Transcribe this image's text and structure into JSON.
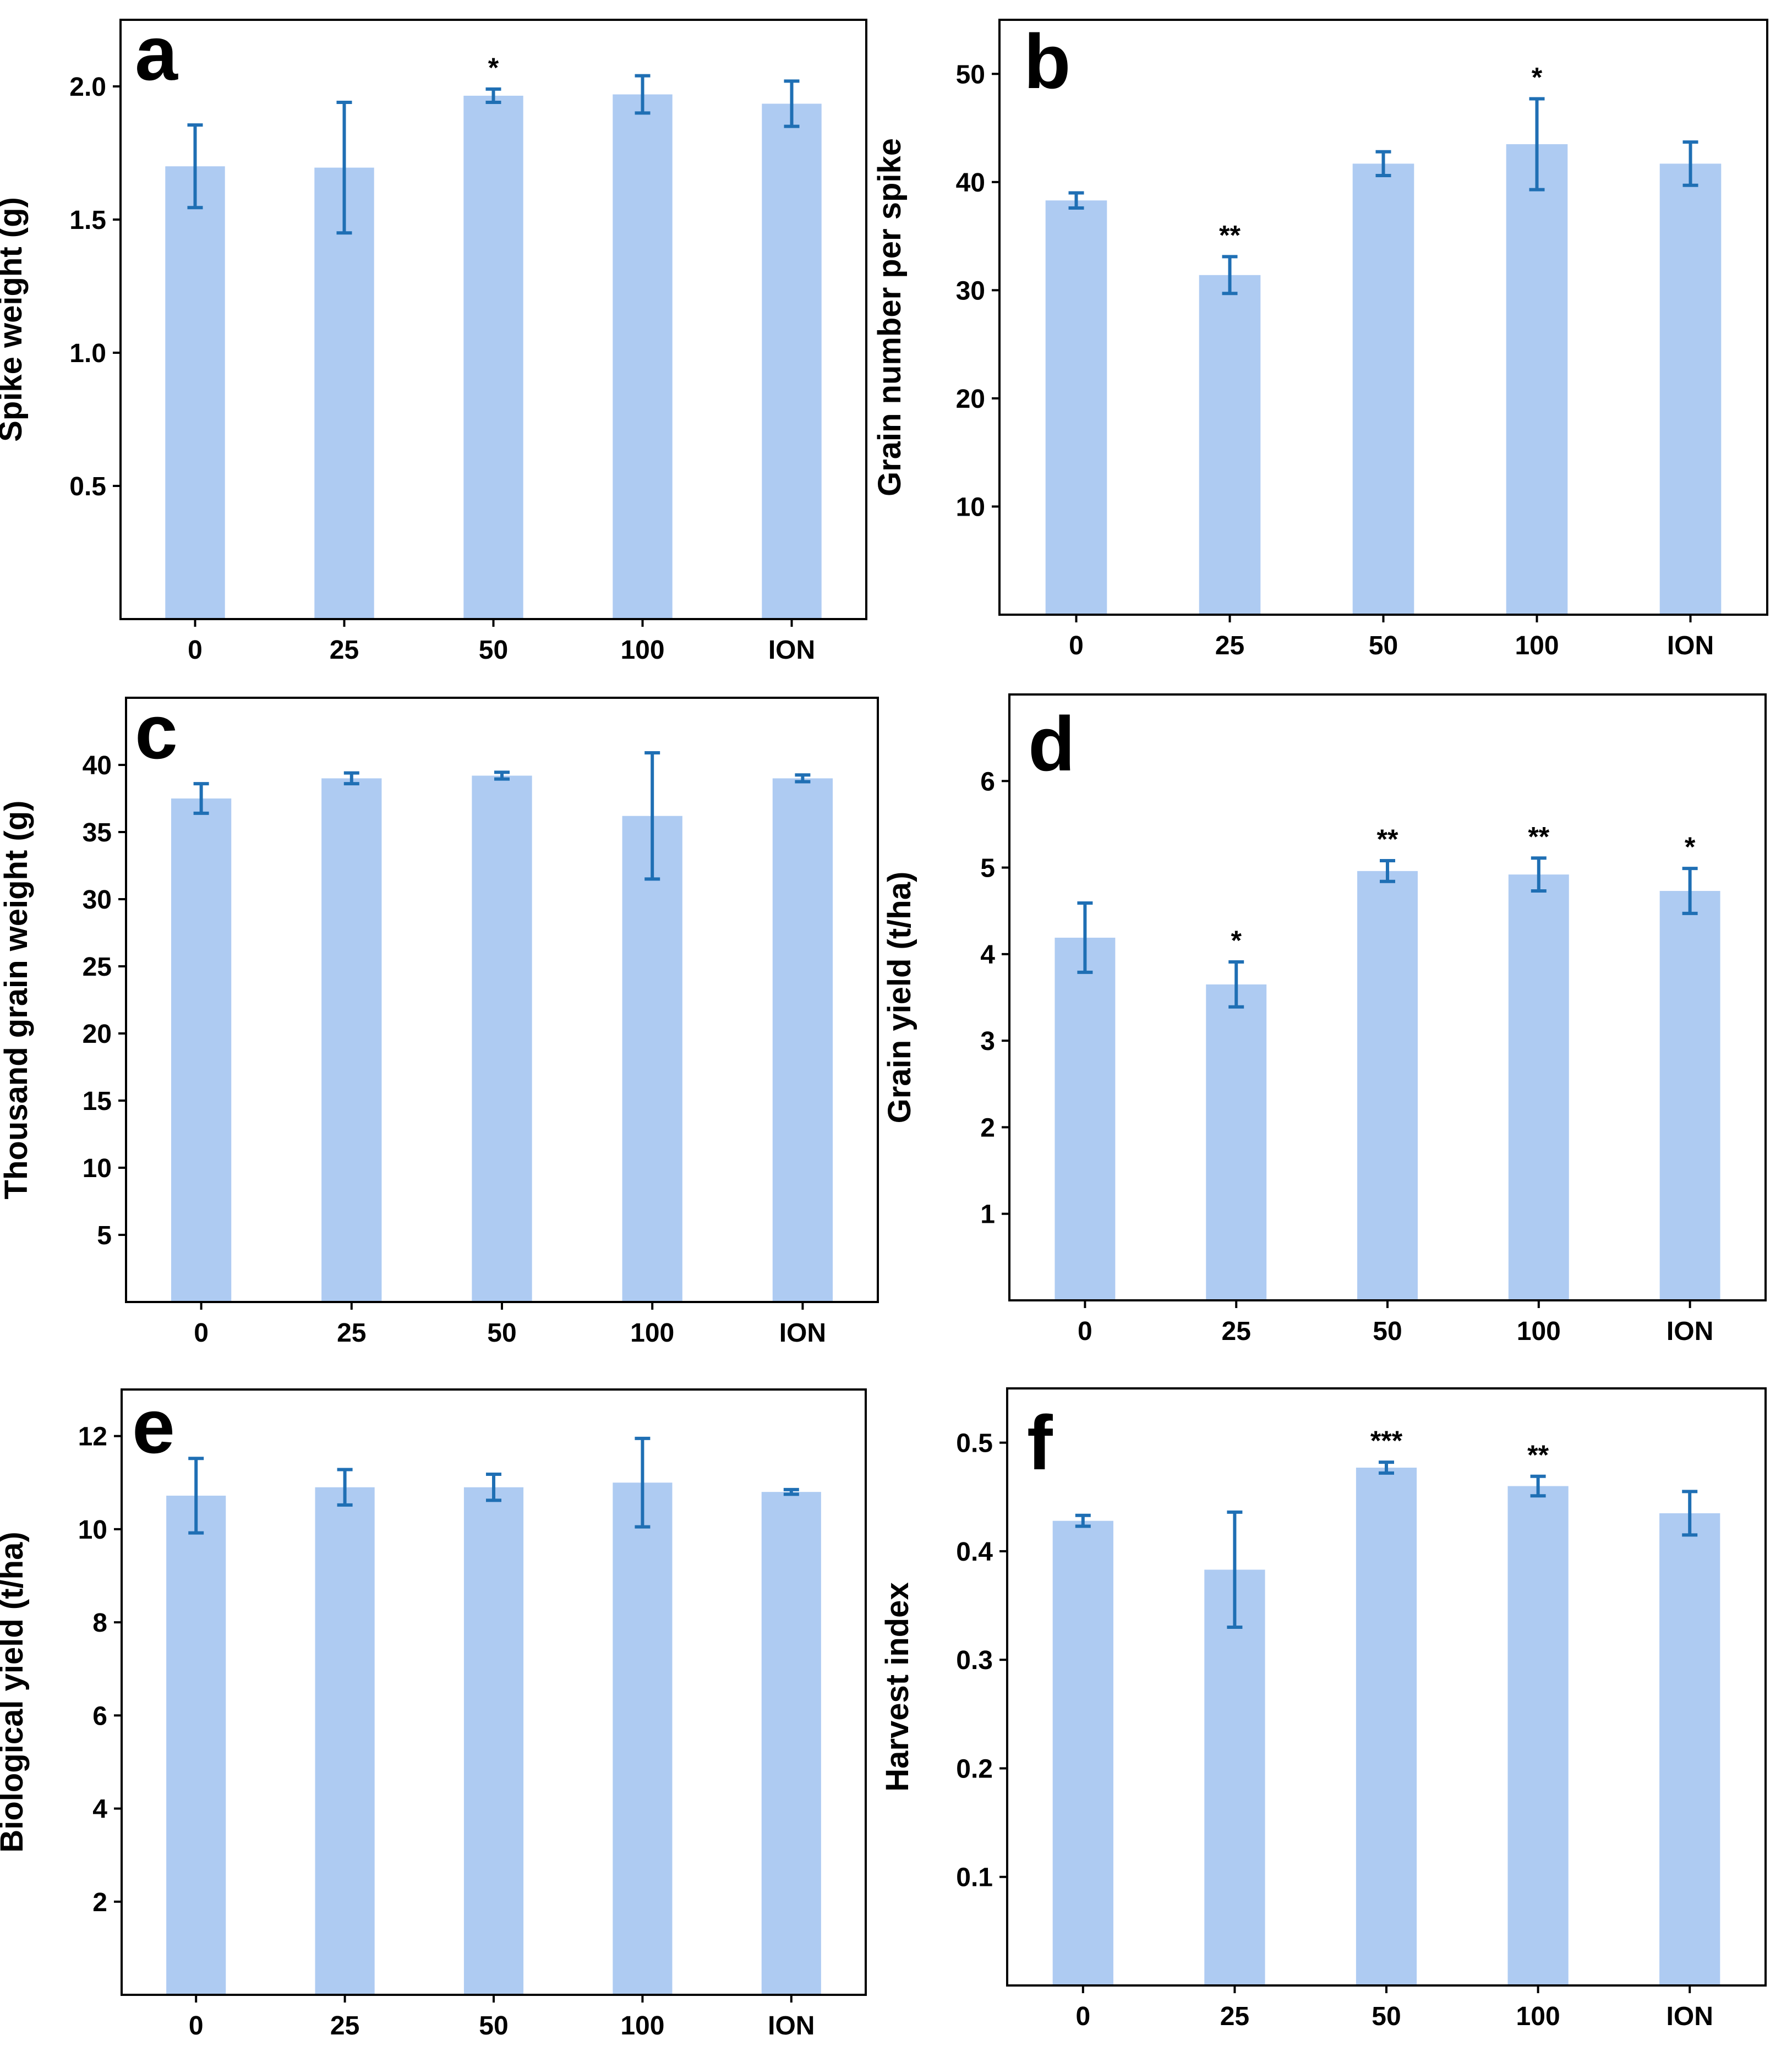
{
  "colors": {
    "bar": "#aecbf2",
    "error": "#1f6fb4",
    "axis": "#000000",
    "text": "#000000"
  },
  "chart_data": [
    {
      "type": "bar",
      "panel": "a",
      "categories": [
        "0",
        "25",
        "50",
        "100",
        "ION"
      ],
      "values": [
        1.7,
        1.695,
        1.965,
        1.97,
        1.935
      ],
      "errors": [
        0.155,
        0.245,
        0.025,
        0.07,
        0.085
      ],
      "significance": [
        "",
        "",
        "*",
        "",
        ""
      ],
      "xlabel": "",
      "ylabel": "Spike weight (g)",
      "ylim": [
        0,
        2.25
      ],
      "yticks": [
        0.5,
        1.0,
        1.5,
        2.0
      ],
      "ytick_labels": [
        "0.5",
        "1.0",
        "1.5",
        "2.0"
      ],
      "grid": false
    },
    {
      "type": "bar",
      "panel": "b",
      "categories": [
        "0",
        "25",
        "50",
        "100",
        "ION"
      ],
      "values": [
        38.3,
        31.4,
        41.7,
        43.5,
        41.7
      ],
      "errors": [
        0.7,
        1.7,
        1.1,
        4.2,
        2.0
      ],
      "significance": [
        "",
        "**",
        "",
        "*",
        ""
      ],
      "xlabel": "",
      "ylabel": "Grain number per spike",
      "ylim": [
        0,
        55
      ],
      "yticks": [
        10,
        20,
        30,
        40,
        50
      ],
      "ytick_labels": [
        "10",
        "20",
        "30",
        "40",
        "50"
      ],
      "grid": false
    },
    {
      "type": "bar",
      "panel": "c",
      "categories": [
        "0",
        "25",
        "50",
        "100",
        "ION"
      ],
      "values": [
        37.5,
        39.0,
        39.2,
        36.2,
        39.0
      ],
      "errors": [
        1.1,
        0.4,
        0.25,
        4.7,
        0.25
      ],
      "significance": [
        "",
        "",
        "",
        "",
        ""
      ],
      "xlabel": "",
      "ylabel": "Thousand grain weight (g)",
      "ylim": [
        0,
        45
      ],
      "yticks": [
        5,
        10,
        15,
        20,
        25,
        30,
        35,
        40
      ],
      "ytick_labels": [
        "5",
        "10",
        "15",
        "20",
        "25",
        "30",
        "35",
        "40"
      ],
      "grid": false
    },
    {
      "type": "bar",
      "panel": "d",
      "categories": [
        "0",
        "25",
        "50",
        "100",
        "ION"
      ],
      "values": [
        4.19,
        3.65,
        4.96,
        4.92,
        4.73
      ],
      "errors": [
        0.4,
        0.26,
        0.12,
        0.19,
        0.26
      ],
      "significance": [
        "",
        "*",
        "**",
        "**",
        "*"
      ],
      "xlabel": "",
      "ylabel": "Grain yield (t/ha)",
      "ylim": [
        0,
        7
      ],
      "yticks": [
        1,
        2,
        3,
        4,
        5,
        6
      ],
      "ytick_labels": [
        "1",
        "2",
        "3",
        "4",
        "5",
        "6"
      ],
      "grid": false
    },
    {
      "type": "bar",
      "panel": "e",
      "categories": [
        "0",
        "25",
        "50",
        "100",
        "ION"
      ],
      "values": [
        10.72,
        10.9,
        10.9,
        11.0,
        10.8
      ],
      "errors": [
        0.8,
        0.38,
        0.28,
        0.95,
        0.05
      ],
      "significance": [
        "",
        "",
        "",
        "",
        ""
      ],
      "xlabel": "",
      "ylabel": "Biological yield (t/ha)",
      "ylim": [
        0,
        13
      ],
      "yticks": [
        2,
        4,
        6,
        8,
        10,
        12
      ],
      "ytick_labels": [
        "2",
        "4",
        "6",
        "8",
        "10",
        "12"
      ],
      "grid": false
    },
    {
      "type": "bar",
      "panel": "f",
      "categories": [
        "0",
        "25",
        "50",
        "100",
        "ION"
      ],
      "values": [
        0.428,
        0.383,
        0.477,
        0.46,
        0.435
      ],
      "errors": [
        0.005,
        0.053,
        0.005,
        0.009,
        0.02
      ],
      "significance": [
        "",
        "",
        "***",
        "**",
        ""
      ],
      "xlabel": "",
      "ylabel": "Harvest index",
      "ylim": [
        0,
        0.55
      ],
      "yticks": [
        0.1,
        0.2,
        0.3,
        0.4,
        0.5
      ],
      "ytick_labels": [
        "0.1",
        "0.2",
        "0.3",
        "0.4",
        "0.5"
      ],
      "grid": false
    }
  ]
}
